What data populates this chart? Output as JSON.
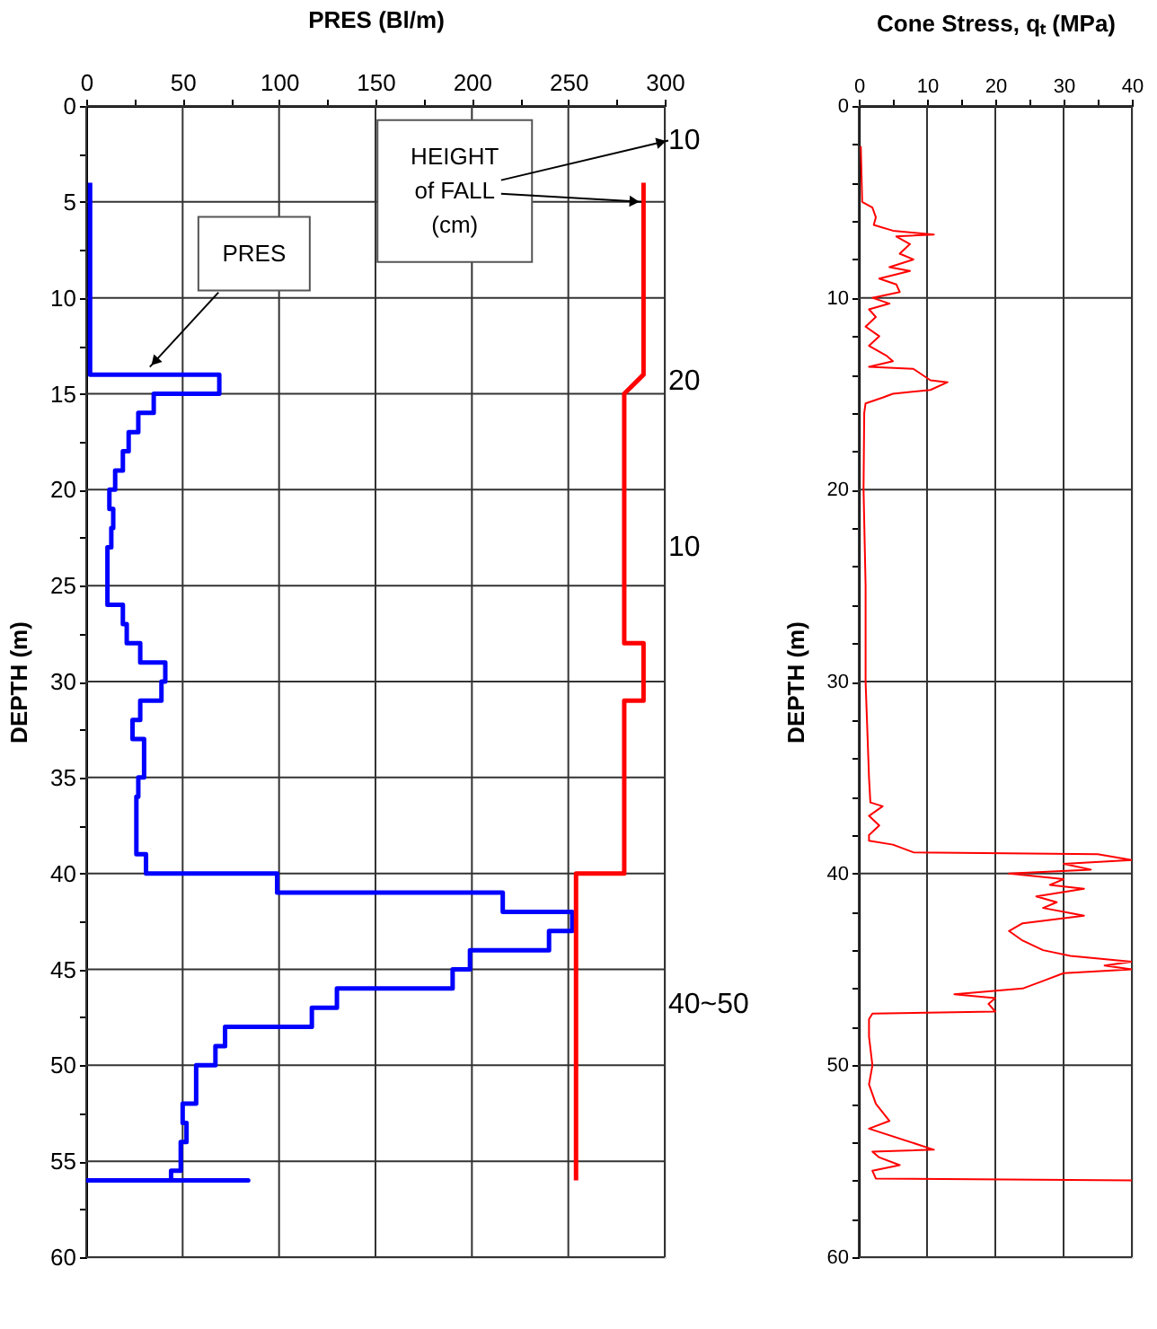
{
  "chart_data": [
    {
      "type": "line",
      "xlabel": "PRES  (Bl/m)",
      "ylabel": "DEPTH  (m)",
      "xlim": [
        0,
        300
      ],
      "ylim": [
        60,
        0
      ],
      "xticks": [
        0,
        {
          "value": 25,
          "label": null
        },
        50,
        {
          "value": 75,
          "label": null
        },
        100,
        {
          "value": 125,
          "label": null
        },
        150,
        {
          "value": 175,
          "label": null
        },
        200,
        {
          "value": 225,
          "label": null
        },
        250,
        {
          "value": 275,
          "label": null
        },
        300
      ],
      "yticks": [
        0,
        {
          "value": 2.5,
          "label": null
        },
        5,
        {
          "value": 7.5,
          "label": null
        },
        10,
        {
          "value": 12.5,
          "label": null
        },
        15,
        {
          "value": 17.5,
          "label": null
        },
        20,
        {
          "value": 22.5,
          "label": null
        },
        25,
        {
          "value": 27.5,
          "label": null
        },
        30,
        {
          "value": 32.5,
          "label": null
        },
        35,
        {
          "value": 37.5,
          "label": null
        },
        40,
        {
          "value": 42.5,
          "label": null
        },
        45,
        {
          "value": 47.5,
          "label": null
        },
        50,
        {
          "value": 52.5,
          "label": null
        },
        55,
        {
          "value": 57.5,
          "label": null
        },
        60
      ],
      "grid": true,
      "series": [
        {
          "color": "#0000ff",
          "x": [
            2,
            2,
            69,
            69,
            35,
            35,
            27,
            27,
            22,
            22,
            19,
            19,
            15,
            15,
            12,
            12,
            14,
            14,
            13,
            13,
            11,
            11,
            19,
            19,
            21,
            21,
            28,
            28,
            41,
            41,
            39,
            39,
            28,
            28,
            24,
            24,
            30,
            30,
            27,
            27,
            26,
            26,
            31,
            31,
            99,
            99,
            216,
            216,
            252,
            252,
            240,
            240,
            199,
            199,
            190,
            190,
            130,
            130,
            117,
            117,
            72,
            72,
            67,
            67,
            57,
            57,
            50,
            50,
            52,
            52,
            49,
            49,
            44,
            44,
            84,
            0
          ],
          "values": [
            4,
            14,
            14,
            15,
            15,
            16,
            16,
            17,
            17,
            18,
            18,
            19,
            19,
            20,
            20,
            21,
            21,
            22,
            22,
            23,
            23,
            26,
            26,
            27,
            27,
            28,
            28,
            29,
            29,
            30,
            30,
            31,
            31,
            32,
            32,
            33,
            33,
            35,
            35,
            36,
            36,
            39,
            39,
            40,
            40,
            41,
            41,
            42,
            42,
            43,
            43,
            44,
            44,
            45,
            45,
            46,
            46,
            47,
            47,
            48,
            48,
            49,
            49,
            50,
            50,
            52,
            52,
            53,
            53,
            54,
            54,
            55.5,
            55.5,
            56,
            56,
            56
          ]
        },
        {
          "color": "#ff0000",
          "x": [
            289,
            289,
            279,
            279,
            289,
            289,
            279,
            279,
            254,
            254
          ],
          "values": [
            4,
            14,
            15,
            28,
            28,
            31,
            31,
            40,
            40,
            56
          ]
        }
      ],
      "annotations": [
        {
          "text": "PRES",
          "x": 33,
          "y": 13.6
        },
        {
          "text": "HEIGHT\nof FALL\n(cm)",
          "x": 288,
          "y": 5
        },
        "10",
        "20",
        "10",
        "40~50"
      ]
    },
    {
      "type": "line",
      "xlabel": "Cone Stress, qₜ  (MPa)",
      "ylabel": "DEPTH  (m)",
      "xlim": [
        0,
        40
      ],
      "ylim": [
        60,
        0
      ],
      "xticks": [
        0,
        {
          "value": 5,
          "label": null
        },
        10,
        {
          "value": 15,
          "label": null
        },
        20,
        {
          "value": 25,
          "label": null
        },
        30,
        {
          "value": 35,
          "label": null
        },
        40
      ],
      "yticks": [
        0,
        {
          "value": 2,
          "label": null
        },
        {
          "value": 4,
          "label": null
        },
        {
          "value": 6,
          "label": null
        },
        {
          "value": 8,
          "label": null
        },
        10,
        {
          "value": 12,
          "label": null
        },
        {
          "value": 14,
          "label": null
        },
        {
          "value": 16,
          "label": null
        },
        {
          "value": 18,
          "label": null
        },
        20,
        {
          "value": 22,
          "label": null
        },
        {
          "value": 24,
          "label": null
        },
        {
          "value": 26,
          "label": null
        },
        {
          "value": 28,
          "label": null
        },
        30,
        {
          "value": 32,
          "label": null
        },
        {
          "value": 34,
          "label": null
        },
        {
          "value": 36,
          "label": null
        },
        {
          "value": 38,
          "label": null
        },
        40,
        {
          "value": 42,
          "label": null
        },
        {
          "value": 44,
          "label": null
        },
        {
          "value": 46,
          "label": null
        },
        {
          "value": 48,
          "label": null
        },
        50,
        {
          "value": 52,
          "label": null
        },
        {
          "value": 54,
          "label": null
        },
        {
          "value": 56,
          "label": null
        },
        {
          "value": 58,
          "label": null
        },
        60
      ],
      "grid": true,
      "series": [
        {
          "color": "#ff0000",
          "x": [
            0.3,
            0.5,
            2,
            2.5,
            2.2,
            5,
            11,
            5.5,
            7.5,
            6,
            8,
            4.5,
            7.5,
            3,
            5.5,
            6,
            2,
            4.5,
            1.5,
            2.5,
            1,
            3,
            1.5,
            4,
            5,
            1.5,
            8,
            10.5,
            13,
            10.5,
            5,
            3.5,
            1,
            0.8,
            0.7,
            1,
            1,
            1.5,
            1.7,
            3.5,
            1.5,
            3,
            1.5,
            1.5,
            5,
            8,
            35,
            40,
            30,
            34,
            22,
            30,
            28,
            33,
            26,
            29,
            27,
            33,
            24,
            22,
            24,
            27,
            31,
            40,
            36,
            40,
            30,
            27,
            24,
            14,
            20,
            19,
            20,
            2,
            1.5,
            1.5,
            2,
            1.5,
            2.5,
            4.5,
            1.5,
            11,
            2,
            3,
            6,
            2,
            2.5,
            40
          ],
          "values": [
            2.1,
            5,
            5.3,
            5.8,
            6.2,
            6.5,
            6.7,
            6.8,
            7.2,
            7.7,
            8,
            8.4,
            8.6,
            9,
            9.3,
            9.7,
            10,
            10.3,
            10.6,
            11,
            11.5,
            12,
            12.5,
            13,
            13.3,
            13.6,
            13.7,
            14.3,
            14.4,
            14.8,
            15,
            15.2,
            15.5,
            16,
            20,
            25,
            30,
            35,
            36.3,
            36.5,
            37,
            37.5,
            38,
            38.3,
            38.5,
            38.9,
            39,
            39.3,
            39.5,
            39.8,
            40,
            40.3,
            40.6,
            40.8,
            41.2,
            41.5,
            41.8,
            42.2,
            42.6,
            43,
            43.5,
            44,
            44.3,
            44.6,
            44.8,
            45,
            45.2,
            45.6,
            46,
            46.3,
            46.5,
            46.8,
            47.2,
            47.3,
            47.6,
            48.5,
            50,
            51,
            52,
            52.9,
            53.3,
            54.4,
            54.5,
            54.8,
            55.2,
            55.5,
            55.9,
            56
          ]
        }
      ]
    }
  ]
}
